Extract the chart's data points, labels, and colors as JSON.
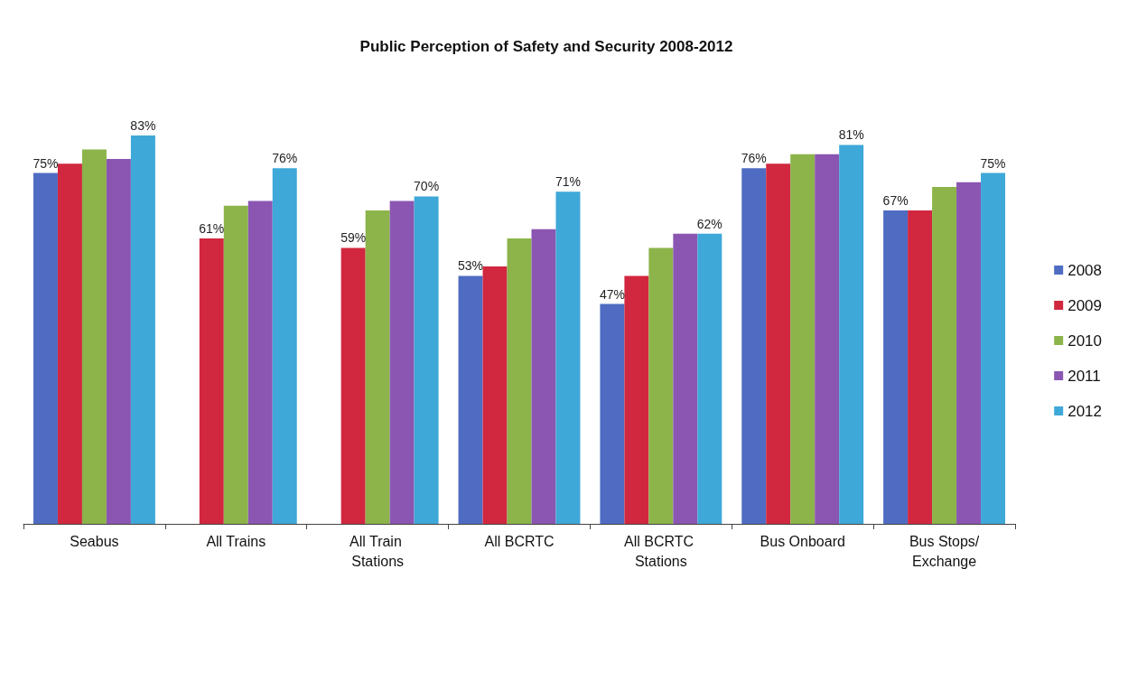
{
  "chart_data": {
    "type": "bar",
    "title": "Public Perception of Safety and Security 2008-2012",
    "categories": [
      "Seabus",
      "All Trains",
      "All Train Stations",
      "All BCRTC",
      "All BCRTC Stations",
      "Bus Onboard",
      "Bus Stops/Exchange"
    ],
    "series": [
      {
        "name": "2008",
        "color": "#4f6cc2",
        "values": [
          75,
          null,
          null,
          53,
          47,
          76,
          67
        ],
        "value_labels": [
          "75%",
          null,
          null,
          "53%",
          "47%",
          "76%",
          "67%"
        ]
      },
      {
        "name": "2009",
        "color": "#d1273f",
        "values": [
          77,
          61,
          59,
          55,
          53,
          77,
          67
        ],
        "value_labels": [
          null,
          "61%",
          "59%",
          null,
          null,
          null,
          null
        ]
      },
      {
        "name": "2010",
        "color": "#8cb44a",
        "values": [
          80,
          68,
          67,
          61,
          59,
          79,
          72
        ]
      },
      {
        "name": "2011",
        "color": "#8b56b2",
        "values": [
          78,
          69,
          69,
          63,
          62,
          79,
          73
        ]
      },
      {
        "name": "2012",
        "color": "#3ea8d8",
        "values": [
          83,
          76,
          70,
          71,
          62,
          81,
          75
        ],
        "value_labels": [
          "83%",
          "76%",
          "70%",
          "71%",
          "62%",
          "81%",
          "75%"
        ]
      }
    ],
    "legend": "right"
  }
}
